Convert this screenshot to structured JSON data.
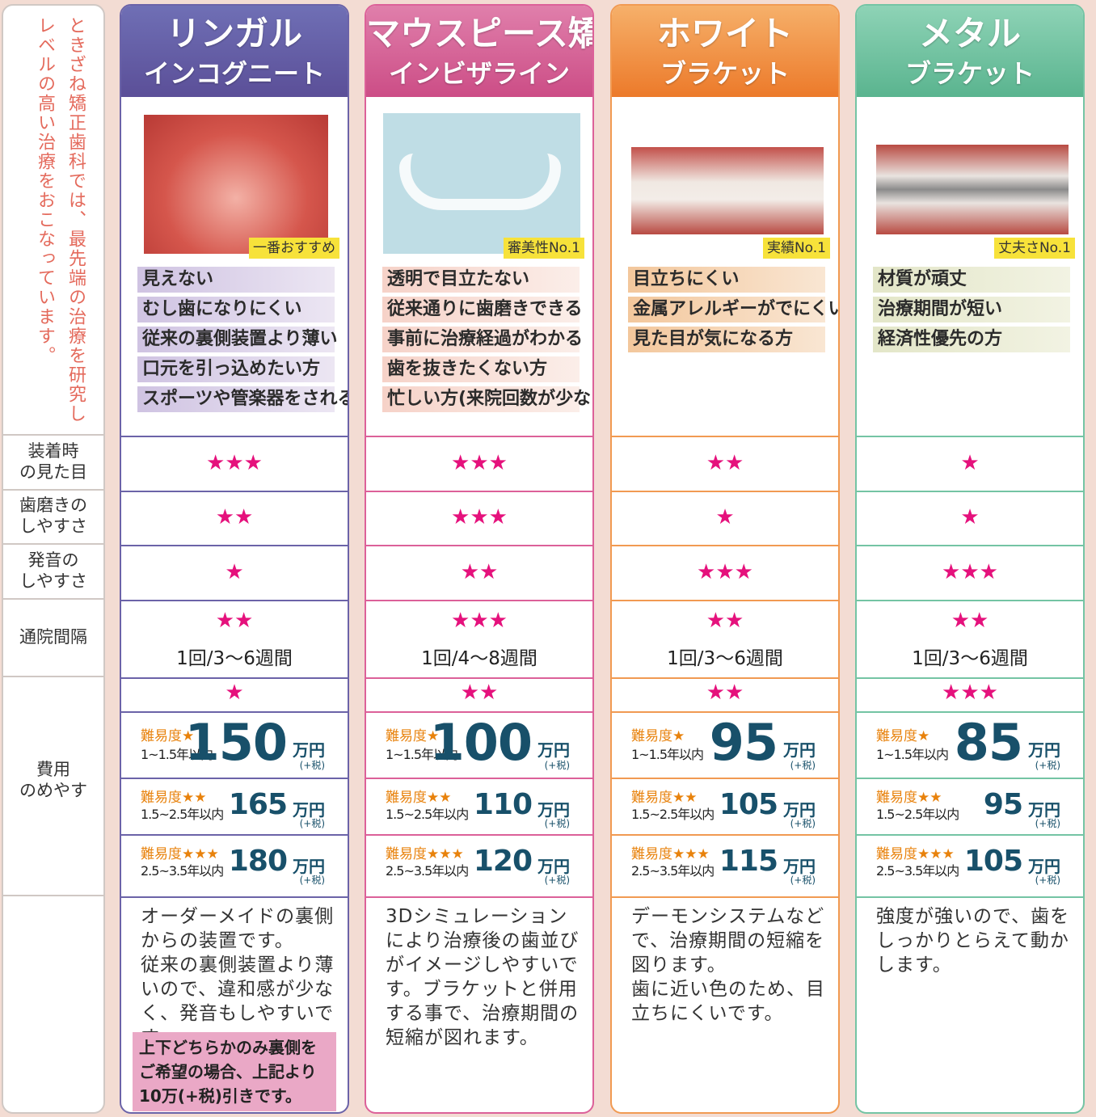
{
  "intro": [
    "ときざね矯正歯科では、最先端の治療を研究し",
    "レベルの高い治療をおこなっています。"
  ],
  "row_labels": [
    "装着時\nの見た目",
    "歯磨きの\nしやすさ",
    "発音の\nしやすさ",
    "通院間隔",
    "費用\nのめやす"
  ],
  "columns": [
    {
      "title": "リンガル",
      "subtitle": "インコグニート",
      "badge": "一番おすすめ",
      "features": [
        "見えない",
        "むし歯になりにくい",
        "従来の裏側装置より薄い",
        "口元を引っ込めたい方",
        "スポーツや管楽器をされる方"
      ],
      "appearance": "★★★",
      "brushing": "★★",
      "pronunciation": "★",
      "visit_stars": "★★",
      "visit_text": "1回/3～6週間",
      "cost_stars": "★",
      "prices": [
        {
          "difficulty": "難易度★",
          "period": "1~1.5年以内",
          "amount": "150",
          "unit": "万円",
          "tax": "(+税)"
        },
        {
          "difficulty": "難易度★★",
          "period": "1.5~2.5年以内",
          "amount": "165",
          "unit": "万円",
          "tax": "(+税)"
        },
        {
          "difficulty": "難易度★★★",
          "period": "2.5~3.5年以内",
          "amount": "180",
          "unit": "万円",
          "tax": "(+税)"
        }
      ],
      "description": "オーダーメイドの裏側からの装置です。\n従来の裏側装置より薄いので、違和感が少なく、発音もしやすいです。",
      "note": "上下どちらかのみ裏側を\nご希望の場合、上記より\n10万(+税)引きです。"
    },
    {
      "title": "マウスピース矯正",
      "subtitle": "インビザライン",
      "badge": "審美性No.1",
      "features": [
        "透明で目立たない",
        "従来通りに歯磨きできる",
        "事前に治療経過がわかる",
        "歯を抜きたくない方",
        "忙しい方(来院回数が少ない)"
      ],
      "appearance": "★★★",
      "brushing": "★★★",
      "pronunciation": "★★",
      "visit_stars": "★★★",
      "visit_text": "1回/4～8週間",
      "cost_stars": "★★",
      "prices": [
        {
          "difficulty": "難易度★",
          "period": "1~1.5年以内",
          "amount": "100",
          "unit": "万円",
          "tax": "(+税)"
        },
        {
          "difficulty": "難易度★★",
          "period": "1.5~2.5年以内",
          "amount": "110",
          "unit": "万円",
          "tax": "(+税)"
        },
        {
          "difficulty": "難易度★★★",
          "period": "2.5~3.5年以内",
          "amount": "120",
          "unit": "万円",
          "tax": "(+税)"
        }
      ],
      "description": "3Dシミュレーションにより治療後の歯並びがイメージしやすいです。ブラケットと併用する事で、治療期間の短縮が図れます。"
    },
    {
      "title": "ホワイト",
      "subtitle": "ブラケット",
      "badge": "実績No.1",
      "features": [
        "目立ちにくい",
        "金属アレルギーがでにくい",
        "見た目が気になる方"
      ],
      "appearance": "★★",
      "brushing": "★",
      "pronunciation": "★★★",
      "visit_stars": "★★",
      "visit_text": "1回/3～6週間",
      "cost_stars": "★★",
      "prices": [
        {
          "difficulty": "難易度★",
          "period": "1~1.5年以内",
          "amount": "95",
          "unit": "万円",
          "tax": "(+税)"
        },
        {
          "difficulty": "難易度★★",
          "period": "1.5~2.5年以内",
          "amount": "105",
          "unit": "万円",
          "tax": "(+税)"
        },
        {
          "difficulty": "難易度★★★",
          "period": "2.5~3.5年以内",
          "amount": "115",
          "unit": "万円",
          "tax": "(+税)"
        }
      ],
      "description": "デーモンシステムなどで、治療期間の短縮を図ります。\n歯に近い色のため、目立ちにくいです。"
    },
    {
      "title": "メタル",
      "subtitle": "ブラケット",
      "badge": "丈夫さNo.1",
      "features": [
        "材質が頑丈",
        "治療期間が短い",
        "経済性優先の方"
      ],
      "appearance": "★",
      "brushing": "★",
      "pronunciation": "★★★",
      "visit_stars": "★★",
      "visit_text": "1回/3～6週間",
      "cost_stars": "★★★",
      "prices": [
        {
          "difficulty": "難易度★",
          "period": "1~1.5年以内",
          "amount": "85",
          "unit": "万円",
          "tax": "(+税)"
        },
        {
          "difficulty": "難易度★★",
          "period": "1.5~2.5年以内",
          "amount": "95",
          "unit": "万円",
          "tax": "(+税)"
        },
        {
          "difficulty": "難易度★★★",
          "period": "2.5~3.5年以内",
          "amount": "105",
          "unit": "万円",
          "tax": "(+税)"
        }
      ],
      "description": "強度が強いので、歯をしっかりとらえて動かします。"
    }
  ]
}
